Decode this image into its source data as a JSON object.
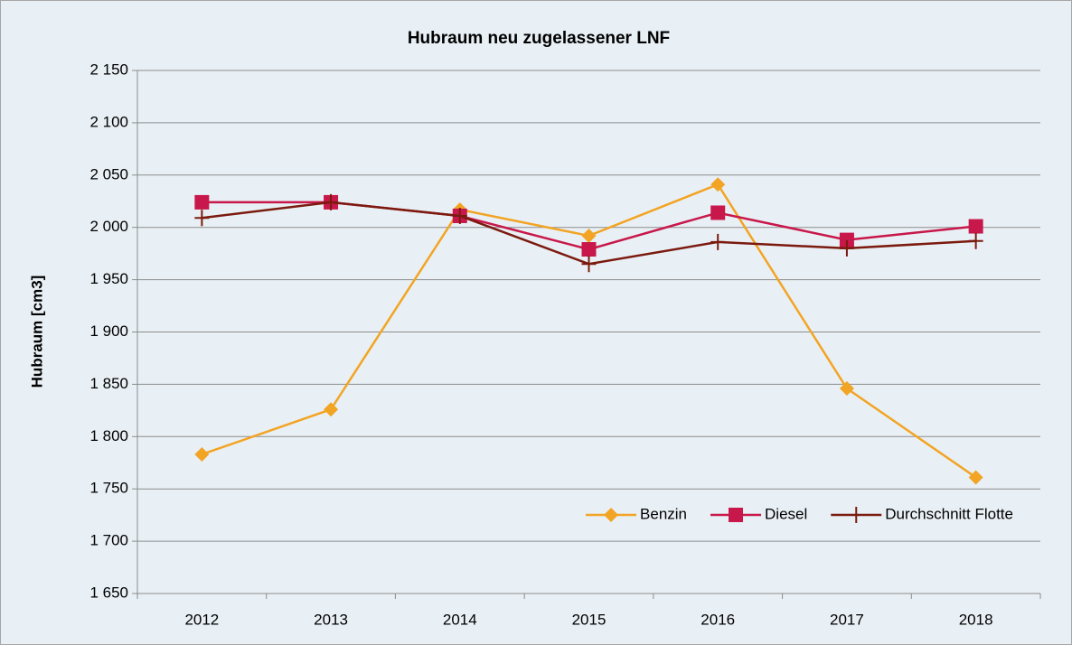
{
  "chart_data": {
    "type": "line",
    "title": "Hubraum neu zugelassener LNF",
    "y_label": "Hubraum [cm3]",
    "categories": [
      "2012",
      "2013",
      "2014",
      "2015",
      "2016",
      "2017",
      "2018"
    ],
    "series": [
      {
        "name": "Benzin",
        "color": "#f2a424",
        "marker": "diamond",
        "values": [
          1783,
          1826,
          2017,
          1992,
          2041,
          1846,
          1761
        ]
      },
      {
        "name": "Diesel",
        "color": "#c8174a",
        "marker": "square",
        "values": [
          2024,
          2024,
          2011,
          1979,
          2014,
          1988,
          2001
        ]
      },
      {
        "name": "Durchschnitt Flotte",
        "color": "#7b1a0e",
        "marker": "plus",
        "values": [
          2009,
          2024,
          2011,
          1965,
          1986,
          1980,
          1987
        ]
      }
    ],
    "ylim": [
      1650,
      2150
    ],
    "yticks": [
      {
        "value": 1650,
        "label": "1 650"
      },
      {
        "value": 1700,
        "label": "1 700"
      },
      {
        "value": 1750,
        "label": "1 750"
      },
      {
        "value": 1800,
        "label": "1 800"
      },
      {
        "value": 1850,
        "label": "1 850"
      },
      {
        "value": 1900,
        "label": "1 900"
      },
      {
        "value": 1950,
        "label": "1 950"
      },
      {
        "value": 2000,
        "label": "2 000"
      },
      {
        "value": 2050,
        "label": "2 050"
      },
      {
        "value": 2100,
        "label": "2 100"
      },
      {
        "value": 2150,
        "label": "2 150"
      }
    ],
    "grid": true,
    "legend": "lower right"
  }
}
